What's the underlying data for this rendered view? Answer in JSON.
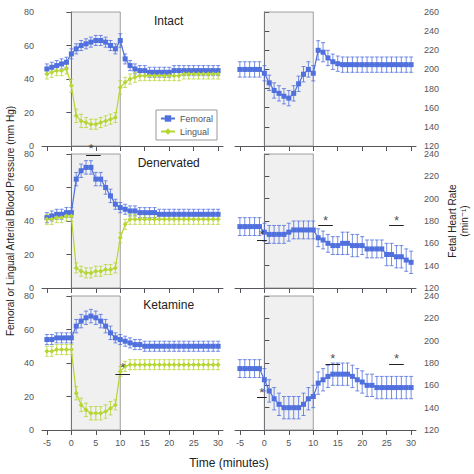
{
  "chart_data": [
    {
      "type": "line",
      "title": "Intact",
      "x": [
        -5,
        -4,
        -3,
        -2,
        -1,
        0,
        1,
        2,
        3,
        4,
        5,
        6,
        7,
        8,
        9,
        10,
        11,
        12,
        13,
        14,
        15,
        16,
        17,
        18,
        19,
        20,
        21,
        22,
        23,
        24,
        25,
        26,
        27,
        28,
        29,
        30
      ],
      "xlim": [
        -6,
        31
      ],
      "xticks": [
        -5,
        0,
        5,
        10,
        15,
        20,
        25,
        30
      ],
      "ylim": [
        0,
        80
      ],
      "yticks": [
        0,
        20,
        40,
        60,
        80
      ],
      "grid": false,
      "tick_labels": "y",
      "legend": "lower right",
      "shaded_x": [
        0,
        10
      ],
      "series": [
        {
          "name": "Femoral",
          "marker": "square",
          "values": [
            46,
            47,
            48,
            49,
            50,
            55,
            58,
            60,
            61,
            62,
            63,
            63,
            62,
            60,
            58,
            63,
            52,
            48,
            46,
            45,
            45,
            44,
            44,
            44,
            44,
            44,
            45,
            45,
            45,
            45,
            45,
            45,
            45,
            45,
            45,
            45
          ],
          "errors": [
            3,
            3,
            3,
            3,
            3,
            3,
            3,
            3,
            3,
            3,
            3,
            3,
            3,
            3,
            3,
            4,
            3,
            3,
            3,
            3,
            3,
            3,
            3,
            3,
            3,
            3,
            3,
            3,
            3,
            3,
            3,
            3,
            3,
            3,
            3,
            3
          ]
        },
        {
          "name": "Lingual",
          "marker": "diamond",
          "values": [
            43,
            44,
            45,
            45,
            46,
            36,
            18,
            15,
            14,
            13,
            13,
            14,
            15,
            16,
            17,
            35,
            38,
            40,
            41,
            42,
            42,
            42,
            42,
            42,
            42,
            42,
            42,
            42,
            43,
            43,
            43,
            43,
            43,
            43,
            43,
            43
          ],
          "errors": [
            3,
            3,
            3,
            3,
            3,
            4,
            4,
            4,
            3,
            3,
            3,
            3,
            3,
            3,
            3,
            4,
            3,
            3,
            3,
            3,
            3,
            3,
            3,
            3,
            3,
            3,
            3,
            3,
            3,
            3,
            3,
            3,
            3,
            3,
            3,
            3
          ]
        }
      ]
    },
    {
      "type": "line",
      "x": [
        -5,
        -4,
        -3,
        -2,
        -1,
        0,
        1,
        2,
        3,
        4,
        5,
        6,
        7,
        8,
        9,
        10,
        11,
        12,
        13,
        14,
        15,
        16,
        17,
        18,
        19,
        20,
        21,
        22,
        23,
        24,
        25,
        26,
        27,
        28,
        29,
        30
      ],
      "xlim": [
        -6,
        31
      ],
      "xticks": [
        -5,
        0,
        5,
        10,
        15,
        20,
        25,
        30
      ],
      "ylim": [
        120,
        260
      ],
      "yticks": [
        120,
        140,
        160,
        180,
        200,
        220,
        240,
        260
      ],
      "grid": false,
      "tick_labels": "y",
      "shaded_x": [
        0,
        10
      ],
      "series": [
        {
          "marker": "square",
          "values": [
            200,
            200,
            200,
            200,
            200,
            196,
            186,
            178,
            175,
            172,
            170,
            175,
            185,
            195,
            200,
            196,
            220,
            218,
            212,
            208,
            206,
            205,
            205,
            205,
            205,
            205,
            205,
            205,
            205,
            205,
            205,
            205,
            205,
            205,
            205,
            205
          ],
          "errors": [
            8,
            8,
            8,
            8,
            8,
            8,
            8,
            8,
            8,
            8,
            8,
            8,
            8,
            8,
            8,
            8,
            10,
            10,
            8,
            8,
            8,
            8,
            8,
            8,
            8,
            8,
            8,
            8,
            8,
            8,
            8,
            8,
            8,
            8,
            8,
            8
          ]
        }
      ]
    },
    {
      "type": "line",
      "title": "Denervated",
      "ylabel": "Femoral or Lingual Arterial Blood Pressure (mm Hg)",
      "x": [
        -5,
        -4,
        -3,
        -2,
        -1,
        0,
        1,
        2,
        3,
        4,
        5,
        6,
        7,
        8,
        9,
        10,
        11,
        12,
        13,
        14,
        15,
        16,
        17,
        18,
        19,
        20,
        21,
        22,
        23,
        24,
        25,
        26,
        27,
        28,
        29,
        30
      ],
      "xlim": [
        -6,
        31
      ],
      "xticks": [
        -5,
        0,
        5,
        10,
        15,
        20,
        25,
        30
      ],
      "ylim": [
        0,
        80
      ],
      "yticks": [
        0,
        20,
        40,
        60,
        80
      ],
      "grid": false,
      "tick_labels": "y",
      "shaded_x": [
        0,
        10
      ],
      "series": [
        {
          "marker": "square",
          "values": [
            42,
            43,
            44,
            44,
            45,
            45,
            65,
            70,
            72,
            72,
            65,
            65,
            60,
            55,
            50,
            48,
            47,
            46,
            46,
            45,
            45,
            45,
            45,
            44,
            44,
            44,
            44,
            44,
            44,
            44,
            44,
            44,
            44,
            44,
            44,
            44
          ],
          "errors": [
            3,
            3,
            3,
            3,
            3,
            3,
            4,
            4,
            4,
            4,
            4,
            4,
            4,
            4,
            3,
            3,
            3,
            3,
            3,
            3,
            3,
            3,
            3,
            3,
            3,
            3,
            3,
            3,
            3,
            3,
            3,
            3,
            3,
            3,
            3,
            3
          ]
        },
        {
          "marker": "diamond",
          "values": [
            41,
            41,
            42,
            42,
            43,
            43,
            12,
            10,
            9,
            9,
            10,
            10,
            11,
            11,
            12,
            30,
            38,
            41,
            41,
            41,
            41,
            41,
            41,
            41,
            41,
            41,
            41,
            41,
            41,
            41,
            41,
            41,
            41,
            41,
            41,
            41
          ],
          "errors": [
            3,
            3,
            3,
            3,
            3,
            3,
            3,
            3,
            3,
            3,
            3,
            3,
            3,
            3,
            3,
            3,
            3,
            3,
            3,
            3,
            3,
            3,
            3,
            3,
            3,
            3,
            3,
            3,
            3,
            3,
            3,
            3,
            3,
            3,
            3,
            3
          ]
        }
      ],
      "annotations": [
        {
          "text": "*",
          "x": 4,
          "y": 79.5,
          "line_x": [
            3,
            6
          ],
          "line_y": 79
        }
      ]
    },
    {
      "type": "line",
      "ylabel": "Fetal Heart Rate\n(min⁻¹)",
      "x": [
        -5,
        -4,
        -3,
        -2,
        -1,
        0,
        1,
        2,
        3,
        4,
        5,
        6,
        7,
        8,
        9,
        10,
        11,
        12,
        13,
        14,
        15,
        16,
        17,
        18,
        19,
        20,
        21,
        22,
        23,
        24,
        25,
        26,
        27,
        28,
        29,
        30
      ],
      "xlim": [
        -6,
        31
      ],
      "xticks": [
        -5,
        0,
        5,
        10,
        15,
        20,
        25,
        30
      ],
      "ylim": [
        120,
        240
      ],
      "yticks": [
        120,
        140,
        160,
        180,
        200,
        220,
        240
      ],
      "grid": false,
      "tick_labels": "y",
      "shaded_x": [
        0,
        10
      ],
      "series": [
        {
          "marker": "square",
          "values": [
            175,
            175,
            175,
            175,
            175,
            170,
            168,
            168,
            168,
            168,
            170,
            172,
            172,
            172,
            172,
            172,
            165,
            163,
            160,
            158,
            158,
            160,
            160,
            158,
            158,
            158,
            155,
            155,
            155,
            155,
            150,
            150,
            148,
            148,
            145,
            143
          ],
          "errors": [
            8,
            8,
            8,
            8,
            8,
            8,
            8,
            8,
            8,
            8,
            8,
            8,
            8,
            8,
            8,
            8,
            8,
            8,
            8,
            8,
            8,
            10,
            10,
            10,
            10,
            8,
            8,
            8,
            8,
            8,
            10,
            10,
            10,
            10,
            10,
            10
          ]
        }
      ],
      "annotations": [
        {
          "text": "*",
          "x": -0.5,
          "y": 162,
          "line_x": [
            -1.5,
            0.5
          ],
          "line_y": 163
        },
        {
          "text": "*",
          "x": 12.5,
          "y": 175,
          "line_x": [
            11,
            14
          ],
          "line_y": 176
        },
        {
          "text": "*",
          "x": 27,
          "y": 175,
          "line_x": [
            25.5,
            28.5
          ],
          "line_y": 176
        }
      ]
    },
    {
      "type": "line",
      "title": "Ketamine",
      "xlabel": "Time (minutes)",
      "x": [
        -5,
        -4,
        -3,
        -2,
        -1,
        0,
        1,
        2,
        3,
        4,
        5,
        6,
        7,
        8,
        9,
        10,
        11,
        12,
        13,
        14,
        15,
        16,
        17,
        18,
        19,
        20,
        21,
        22,
        23,
        24,
        25,
        26,
        27,
        28,
        29,
        30
      ],
      "xlim": [
        -6,
        31
      ],
      "xticks": [
        -5,
        0,
        5,
        10,
        15,
        20,
        25,
        30
      ],
      "ylim": [
        0,
        80
      ],
      "yticks": [
        0,
        20,
        40,
        60,
        80
      ],
      "grid": false,
      "shaded_x": [
        0,
        10
      ],
      "series": [
        {
          "marker": "square",
          "values": [
            54,
            54,
            55,
            55,
            55,
            55,
            62,
            65,
            67,
            68,
            67,
            65,
            62,
            58,
            55,
            54,
            53,
            52,
            51,
            51,
            50,
            50,
            50,
            50,
            50,
            50,
            50,
            50,
            50,
            50,
            50,
            50,
            50,
            50,
            50,
            50
          ],
          "errors": [
            3,
            3,
            3,
            3,
            3,
            3,
            4,
            4,
            4,
            4,
            4,
            4,
            4,
            4,
            3,
            3,
            3,
            3,
            3,
            3,
            3,
            3,
            3,
            3,
            3,
            3,
            3,
            3,
            3,
            3,
            3,
            3,
            3,
            3,
            3,
            3
          ]
        },
        {
          "marker": "diamond",
          "values": [
            47,
            47,
            48,
            48,
            48,
            48,
            22,
            15,
            12,
            10,
            10,
            10,
            11,
            13,
            15,
            35,
            38,
            39,
            39,
            39,
            39,
            39,
            39,
            39,
            39,
            39,
            39,
            39,
            39,
            39,
            39,
            39,
            39,
            39,
            39,
            39
          ],
          "errors": [
            3,
            3,
            3,
            3,
            3,
            3,
            4,
            4,
            4,
            4,
            4,
            4,
            4,
            4,
            3,
            3,
            3,
            3,
            3,
            3,
            3,
            3,
            3,
            3,
            3,
            3,
            3,
            3,
            3,
            3,
            3,
            3,
            3,
            3,
            3,
            3
          ]
        }
      ],
      "annotations": [
        {
          "text": "*",
          "x": 10.5,
          "y": 33.5,
          "line_x": [
            9,
            12
          ],
          "line_y": 33
        }
      ]
    },
    {
      "type": "line",
      "x": [
        -5,
        -4,
        -3,
        -2,
        -1,
        0,
        1,
        2,
        3,
        4,
        5,
        6,
        7,
        8,
        9,
        10,
        11,
        12,
        13,
        14,
        15,
        16,
        17,
        18,
        19,
        20,
        21,
        22,
        23,
        24,
        25,
        26,
        27,
        28,
        29,
        30
      ],
      "xlim": [
        -6,
        31
      ],
      "xticks": [
        -5,
        0,
        5,
        10,
        15,
        20,
        25,
        30
      ],
      "ylim": [
        120,
        240
      ],
      "yticks": [
        120,
        140,
        160,
        180,
        200,
        220,
        240
      ],
      "grid": false,
      "shaded_x": [
        0,
        10
      ],
      "series": [
        {
          "marker": "square",
          "values": [
            175,
            175,
            175,
            175,
            175,
            165,
            155,
            148,
            143,
            140,
            140,
            140,
            140,
            143,
            148,
            150,
            162,
            165,
            168,
            170,
            170,
            170,
            170,
            168,
            165,
            163,
            160,
            160,
            158,
            158,
            158,
            158,
            158,
            158,
            158,
            158
          ],
          "errors": [
            8,
            8,
            8,
            8,
            8,
            10,
            10,
            10,
            10,
            10,
            10,
            10,
            10,
            10,
            10,
            10,
            10,
            10,
            10,
            10,
            10,
            10,
            10,
            10,
            10,
            10,
            10,
            10,
            10,
            10,
            10,
            10,
            10,
            10,
            10,
            10
          ]
        }
      ],
      "annotations": [
        {
          "text": "*",
          "x": -0.5,
          "y": 148,
          "line_x": [
            -1.5,
            0.5
          ],
          "line_y": 149
        },
        {
          "text": "*",
          "x": 14,
          "y": 178,
          "line_x": [
            12.5,
            15.5
          ],
          "line_y": 179
        },
        {
          "text": "*",
          "x": 27,
          "y": 178,
          "line_x": [
            25.5,
            28.5
          ],
          "line_y": 179
        }
      ]
    }
  ]
}
